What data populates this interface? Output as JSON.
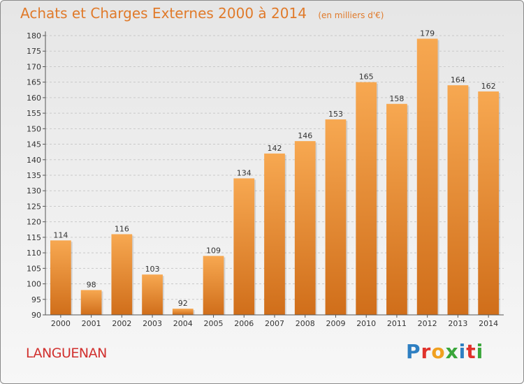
{
  "header": {
    "title": "Achats et Charges Externes 2000 à 2014",
    "unit_note": "(en milliers d'€)"
  },
  "footer": {
    "place": "LANGUENAN",
    "logo_text": "Proxiti"
  },
  "colors": {
    "bar_light": "#f5a34a",
    "bar_dark": "#d06e1a",
    "title": "#e07a2a",
    "place": "#d1302e"
  },
  "chart_data": {
    "type": "bar",
    "title": "Achats et Charges Externes 2000 à 2014",
    "subtitle": "(en milliers d'€)",
    "xlabel": "",
    "ylabel": "",
    "categories": [
      "2000",
      "2001",
      "2002",
      "2003",
      "2004",
      "2005",
      "2006",
      "2007",
      "2008",
      "2009",
      "2010",
      "2011",
      "2012",
      "2013",
      "2014"
    ],
    "values": [
      114,
      98,
      116,
      103,
      92,
      109,
      134,
      142,
      146,
      153,
      165,
      158,
      179,
      164,
      162
    ],
    "ylim": [
      90,
      180
    ],
    "yticks": [
      90,
      95,
      100,
      105,
      110,
      115,
      120,
      125,
      130,
      135,
      140,
      145,
      150,
      155,
      160,
      165,
      170,
      175,
      180
    ],
    "grid": true,
    "data_labels": true,
    "legend": "none"
  }
}
